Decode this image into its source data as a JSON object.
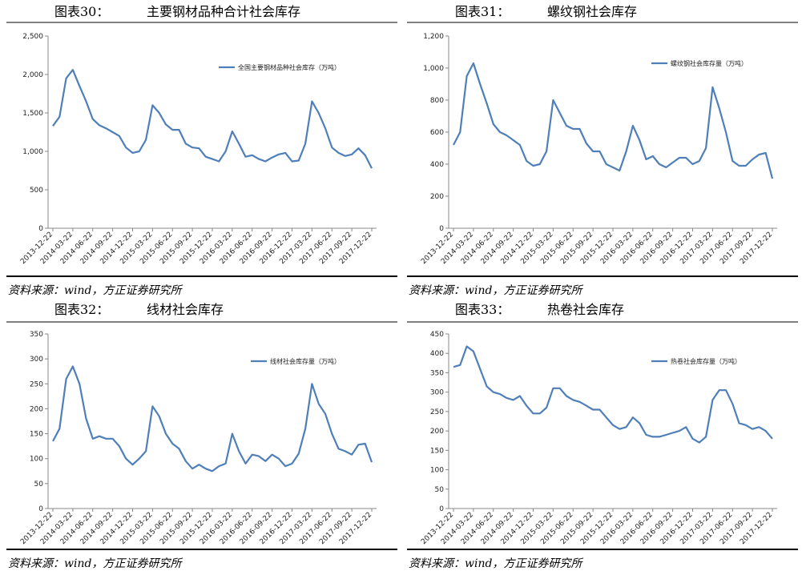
{
  "chart_data": [
    {
      "type": "line",
      "figure_label": "图表30：",
      "title": "主要钢材品种合计社会库存",
      "source": "资料来源：wind，方正证券研究所",
      "x": [
        "2013-12-22",
        "2014-01-22",
        "2014-02-22",
        "2014-03-22",
        "2014-04-22",
        "2014-05-22",
        "2014-06-22",
        "2014-07-22",
        "2014-08-22",
        "2014-09-22",
        "2014-10-22",
        "2014-11-22",
        "2014-12-22",
        "2015-01-22",
        "2015-02-22",
        "2015-03-22",
        "2015-04-22",
        "2015-05-22",
        "2015-06-22",
        "2015-07-22",
        "2015-08-22",
        "2015-09-22",
        "2015-10-22",
        "2015-11-22",
        "2015-12-22",
        "2016-01-22",
        "2016-02-22",
        "2016-03-22",
        "2016-04-22",
        "2016-05-22",
        "2016-06-22",
        "2016-07-22",
        "2016-08-22",
        "2016-09-22",
        "2016-10-22",
        "2016-11-22",
        "2016-12-22",
        "2017-01-22",
        "2017-02-22",
        "2017-03-22",
        "2017-04-22",
        "2017-05-22",
        "2017-06-22",
        "2017-07-22",
        "2017-08-22",
        "2017-09-22",
        "2017-10-22",
        "2017-11-22",
        "2017-12-22"
      ],
      "series": [
        {
          "name": "全国主要钢材品种社会库存（万吨）",
          "color": "#4f7fb8",
          "values": [
            1330,
            1450,
            1950,
            2060,
            1850,
            1650,
            1420,
            1340,
            1300,
            1250,
            1200,
            1050,
            980,
            1000,
            1150,
            1600,
            1500,
            1350,
            1280,
            1280,
            1100,
            1050,
            1040,
            930,
            900,
            870,
            1000,
            1260,
            1100,
            930,
            950,
            900,
            870,
            920,
            960,
            980,
            870,
            880,
            1100,
            1650,
            1500,
            1300,
            1050,
            980,
            940,
            960,
            1040,
            950,
            780
          ]
        }
      ],
      "ylim": [
        0,
        2500
      ],
      "yticks": [
        0,
        500,
        {
          "value": 1000,
          "label": "1,000"
        },
        {
          "value": 1500,
          "label": "1,500"
        },
        {
          "value": 2000,
          "label": "2,000"
        },
        {
          "value": 2500,
          "label": "2,500"
        }
      ]
    },
    {
      "type": "line",
      "figure_label": "图表31：",
      "title": "螺纹钢社会库存",
      "source": "资料来源：wind，方正证券研究所",
      "x": [
        "2013-12-22",
        "2014-01-22",
        "2014-02-22",
        "2014-03-22",
        "2014-04-22",
        "2014-05-22",
        "2014-06-22",
        "2014-07-22",
        "2014-08-22",
        "2014-09-22",
        "2014-10-22",
        "2014-11-22",
        "2014-12-22",
        "2015-01-22",
        "2015-02-22",
        "2015-03-22",
        "2015-04-22",
        "2015-05-22",
        "2015-06-22",
        "2015-07-22",
        "2015-08-22",
        "2015-09-22",
        "2015-10-22",
        "2015-11-22",
        "2015-12-22",
        "2016-01-22",
        "2016-02-22",
        "2016-03-22",
        "2016-04-22",
        "2016-05-22",
        "2016-06-22",
        "2016-07-22",
        "2016-08-22",
        "2016-09-22",
        "2016-10-22",
        "2016-11-22",
        "2016-12-22",
        "2017-01-22",
        "2017-02-22",
        "2017-03-22",
        "2017-04-22",
        "2017-05-22",
        "2017-06-22",
        "2017-07-22",
        "2017-08-22",
        "2017-09-22",
        "2017-10-22",
        "2017-11-22",
        "2017-12-22"
      ],
      "series": [
        {
          "name": "螺纹钢社会库存量（万吨）",
          "color": "#4f7fb8",
          "values": [
            520,
            600,
            950,
            1030,
            900,
            780,
            650,
            600,
            580,
            550,
            520,
            420,
            390,
            400,
            480,
            800,
            720,
            640,
            620,
            620,
            530,
            480,
            480,
            400,
            380,
            360,
            480,
            640,
            550,
            430,
            450,
            400,
            380,
            410,
            440,
            440,
            400,
            420,
            500,
            880,
            750,
            600,
            420,
            390,
            390,
            430,
            460,
            470,
            310
          ]
        }
      ],
      "ylim": [
        0,
        1200
      ],
      "yticks": [
        0,
        200,
        400,
        600,
        800,
        {
          "value": 1000,
          "label": "1,000"
        },
        {
          "value": 1200,
          "label": "1,200"
        }
      ]
    },
    {
      "type": "line",
      "figure_label": "图表32：",
      "title": "线材社会库存",
      "source": "资料来源：wind，方正证券研究所",
      "x": [
        "2013-12-22",
        "2014-01-22",
        "2014-02-22",
        "2014-03-22",
        "2014-04-22",
        "2014-05-22",
        "2014-06-22",
        "2014-07-22",
        "2014-08-22",
        "2014-09-22",
        "2014-10-22",
        "2014-11-22",
        "2014-12-22",
        "2015-01-22",
        "2015-02-22",
        "2015-03-22",
        "2015-04-22",
        "2015-05-22",
        "2015-06-22",
        "2015-07-22",
        "2015-08-22",
        "2015-09-22",
        "2015-10-22",
        "2015-11-22",
        "2015-12-22",
        "2016-01-22",
        "2016-02-22",
        "2016-03-22",
        "2016-04-22",
        "2016-05-22",
        "2016-06-22",
        "2016-07-22",
        "2016-08-22",
        "2016-09-22",
        "2016-10-22",
        "2016-11-22",
        "2016-12-22",
        "2017-01-22",
        "2017-02-22",
        "2017-03-22",
        "2017-04-22",
        "2017-05-22",
        "2017-06-22",
        "2017-07-22",
        "2017-08-22",
        "2017-09-22",
        "2017-10-22",
        "2017-11-22",
        "2017-12-22"
      ],
      "series": [
        {
          "name": "线材社会库存量（万吨）",
          "color": "#4f7fb8",
          "values": [
            135,
            160,
            260,
            285,
            250,
            180,
            140,
            145,
            140,
            140,
            125,
            100,
            88,
            100,
            115,
            205,
            185,
            150,
            130,
            120,
            95,
            80,
            88,
            80,
            75,
            85,
            90,
            150,
            115,
            90,
            108,
            105,
            95,
            108,
            100,
            85,
            90,
            110,
            160,
            250,
            210,
            190,
            150,
            120,
            115,
            108,
            128,
            130,
            93
          ]
        }
      ],
      "ylim": [
        0,
        350
      ],
      "yticks": [
        0,
        50,
        100,
        150,
        200,
        250,
        300,
        350
      ]
    },
    {
      "type": "line",
      "figure_label": "图表33：",
      "title": "热卷社会库存",
      "source": "资料来源：wind，方正证券研究所",
      "x": [
        "2013-12-22",
        "2014-01-22",
        "2014-02-22",
        "2014-03-22",
        "2014-04-22",
        "2014-05-22",
        "2014-06-22",
        "2014-07-22",
        "2014-08-22",
        "2014-09-22",
        "2014-10-22",
        "2014-11-22",
        "2014-12-22",
        "2015-01-22",
        "2015-02-22",
        "2015-03-22",
        "2015-04-22",
        "2015-05-22",
        "2015-06-22",
        "2015-07-22",
        "2015-08-22",
        "2015-09-22",
        "2015-10-22",
        "2015-11-22",
        "2015-12-22",
        "2016-01-22",
        "2016-02-22",
        "2016-03-22",
        "2016-04-22",
        "2016-05-22",
        "2016-06-22",
        "2016-07-22",
        "2016-08-22",
        "2016-09-22",
        "2016-10-22",
        "2016-11-22",
        "2016-12-22",
        "2017-01-22",
        "2017-02-22",
        "2017-03-22",
        "2017-04-22",
        "2017-05-22",
        "2017-06-22",
        "2017-07-22",
        "2017-08-22",
        "2017-09-22",
        "2017-10-22",
        "2017-11-22",
        "2017-12-22"
      ],
      "series": [
        {
          "name": "热卷社会库存量（万吨）",
          "color": "#4f7fb8",
          "values": [
            365,
            370,
            418,
            405,
            360,
            315,
            300,
            295,
            285,
            280,
            290,
            265,
            245,
            245,
            260,
            310,
            310,
            290,
            280,
            275,
            265,
            255,
            255,
            235,
            215,
            205,
            210,
            235,
            220,
            190,
            185,
            185,
            190,
            195,
            200,
            210,
            180,
            170,
            185,
            280,
            305,
            305,
            270,
            220,
            215,
            205,
            210,
            200,
            180
          ]
        }
      ],
      "ylim": [
        0,
        450
      ],
      "yticks": [
        0,
        50,
        100,
        150,
        200,
        250,
        300,
        350,
        400,
        450
      ]
    }
  ]
}
